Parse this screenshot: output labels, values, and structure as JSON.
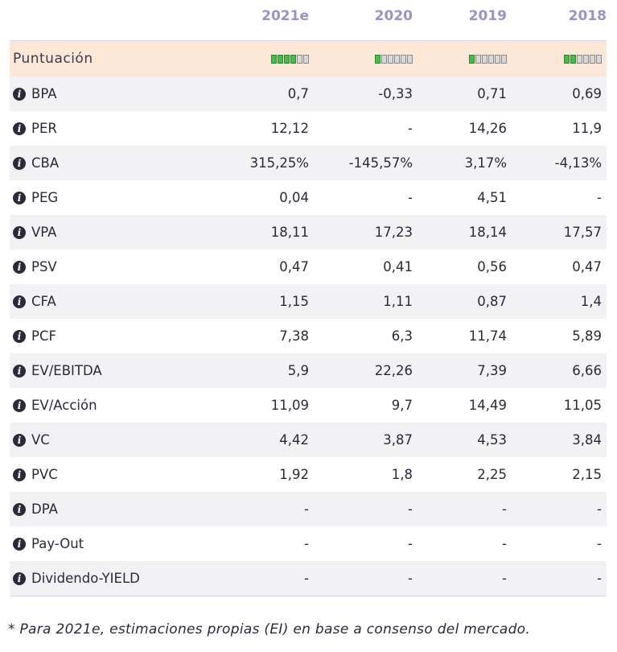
{
  "columns": [
    "2021e",
    "2020",
    "2019",
    "2018"
  ],
  "score": {
    "label": "Puntuación",
    "levels": [
      4,
      1,
      1,
      2
    ],
    "max": 6,
    "colors": {
      "on": "#3fbf4a",
      "off": "#d8d8d8"
    }
  },
  "rows": [
    {
      "label": "BPA",
      "values": [
        "0,7",
        "-0,33",
        "0,71",
        "0,69"
      ]
    },
    {
      "label": "PER",
      "values": [
        "12,12",
        "-",
        "14,26",
        "11,9"
      ]
    },
    {
      "label": "CBA",
      "values": [
        "315,25%",
        "-145,57%",
        "3,17%",
        "-4,13%"
      ]
    },
    {
      "label": "PEG",
      "values": [
        "0,04",
        "-",
        "4,51",
        "-"
      ]
    },
    {
      "label": "VPA",
      "values": [
        "18,11",
        "17,23",
        "18,14",
        "17,57"
      ]
    },
    {
      "label": "PSV",
      "values": [
        "0,47",
        "0,41",
        "0,56",
        "0,47"
      ]
    },
    {
      "label": "CFA",
      "values": [
        "1,15",
        "1,11",
        "0,87",
        "1,4"
      ]
    },
    {
      "label": "PCF",
      "values": [
        "7,38",
        "6,3",
        "11,74",
        "5,89"
      ]
    },
    {
      "label": "EV/EBITDA",
      "values": [
        "5,9",
        "22,26",
        "7,39",
        "6,66"
      ]
    },
    {
      "label": "EV/Acción",
      "values": [
        "11,09",
        "9,7",
        "14,49",
        "11,05"
      ]
    },
    {
      "label": "VC",
      "values": [
        "4,42",
        "3,87",
        "4,53",
        "3,84"
      ]
    },
    {
      "label": "PVC",
      "values": [
        "1,92",
        "1,8",
        "2,25",
        "2,15"
      ]
    },
    {
      "label": "DPA",
      "values": [
        "-",
        "-",
        "-",
        "-"
      ]
    },
    {
      "label": "Pay-Out",
      "values": [
        "-",
        "-",
        "-",
        "-"
      ]
    },
    {
      "label": "Dividendo-YIELD",
      "values": [
        "-",
        "-",
        "-",
        "-"
      ]
    }
  ],
  "icons": {
    "info": "info-icon"
  },
  "footnote": "* Para 2021e, estimaciones propias (EI) en base a consenso del mercado."
}
